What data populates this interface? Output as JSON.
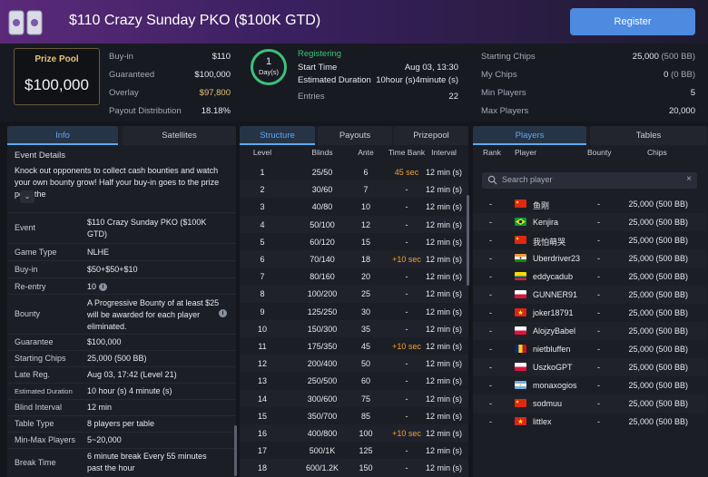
{
  "header": {
    "title": "$110 Crazy Sunday PKO ($100K GTD)",
    "register_label": "Register"
  },
  "summary": {
    "prize_pool_label": "Prize Pool",
    "prize_pool_value": "$100,000",
    "left": [
      {
        "k": "Buy-in",
        "v": "$110"
      },
      {
        "k": "Guaranteed",
        "v": "$100,000"
      },
      {
        "k": "Overlay",
        "v": "$97,800"
      },
      {
        "k": "Payout Distribution",
        "v": "18.18%"
      }
    ],
    "day_num": "1",
    "day_unit": "Day(s)",
    "status": "Registering",
    "mid": [
      {
        "k": "Start Time",
        "v": "Aug 03, 13:30"
      },
      {
        "k": "Estimated Duration",
        "v": "10hour (s)4minute (s)"
      },
      {
        "k": "Entries",
        "v": "22"
      }
    ],
    "right": [
      {
        "k": "Starting Chips",
        "v": "25,000",
        "sub": "(500 BB)"
      },
      {
        "k": "My Chips",
        "v": "0",
        "sub": "(0 BB)"
      },
      {
        "k": "Min Players",
        "v": "5"
      },
      {
        "k": "Max Players",
        "v": "20,000"
      }
    ]
  },
  "info_tabs": [
    "Info",
    "Satellites"
  ],
  "info": {
    "heading": "Event Details",
    "description": "Knock out opponents to collect cash bounties and watch your own bounty grow! Half your buy-in goes to the prize pool, the",
    "rows": [
      {
        "label": "Event",
        "value": "$110 Crazy Sunday PKO ($100K GTD)"
      },
      {
        "label": "Game Type",
        "value": "NLHE"
      },
      {
        "label": "Buy-in",
        "value": "$50+$50+$10"
      },
      {
        "label": "Re-entry",
        "value": "10"
      },
      {
        "label": "Bounty",
        "value": "A Progressive Bounty of at least $25 will be awarded for each player eliminated."
      },
      {
        "label": "Guarantee",
        "value": "$100,000"
      },
      {
        "label": "Starting Chips",
        "value": "25,000 (500 BB)"
      },
      {
        "label": "Late Reg.",
        "value": "Aug 03, 17:42 (Level 21)"
      },
      {
        "label": "Estimated Duration",
        "value": "10 hour (s) 4 minute (s)"
      },
      {
        "label": "Blind Interval",
        "value": "12 min"
      },
      {
        "label": "Table Type",
        "value": "8 players per table"
      },
      {
        "label": "Min-Max Players",
        "value": "5~20,000"
      },
      {
        "label": "Break Time",
        "value": "6 minute break Every 55 minutes past the hour"
      }
    ]
  },
  "structure_tabs": [
    "Structure",
    "Payouts",
    "Prizepool"
  ],
  "structure": {
    "headers": [
      "Level",
      "Blinds",
      "Ante",
      "Time Bank",
      "Interval"
    ],
    "rows": [
      [
        "1",
        "25/50",
        "6",
        "45 sec",
        "12 min (s)"
      ],
      [
        "2",
        "30/60",
        "7",
        "-",
        "12 min (s)"
      ],
      [
        "3",
        "40/80",
        "10",
        "-",
        "12 min (s)"
      ],
      [
        "4",
        "50/100",
        "12",
        "-",
        "12 min (s)"
      ],
      [
        "5",
        "60/120",
        "15",
        "-",
        "12 min (s)"
      ],
      [
        "6",
        "70/140",
        "18",
        "+10 sec",
        "12 min (s)"
      ],
      [
        "7",
        "80/160",
        "20",
        "-",
        "12 min (s)"
      ],
      [
        "8",
        "100/200",
        "25",
        "-",
        "12 min (s)"
      ],
      [
        "9",
        "125/250",
        "30",
        "-",
        "12 min (s)"
      ],
      [
        "10",
        "150/300",
        "35",
        "-",
        "12 min (s)"
      ],
      [
        "11",
        "175/350",
        "45",
        "+10 sec",
        "12 min (s)"
      ],
      [
        "12",
        "200/400",
        "50",
        "-",
        "12 min (s)"
      ],
      [
        "13",
        "250/500",
        "60",
        "-",
        "12 min (s)"
      ],
      [
        "14",
        "300/600",
        "75",
        "-",
        "12 min (s)"
      ],
      [
        "15",
        "350/700",
        "85",
        "-",
        "12 min (s)"
      ],
      [
        "16",
        "400/800",
        "100",
        "+10 sec",
        "12 min (s)"
      ],
      [
        "17",
        "500/1K",
        "125",
        "-",
        "12 min (s)"
      ],
      [
        "18",
        "600/1.2K",
        "150",
        "-",
        "12 min (s)"
      ]
    ]
  },
  "players_tabs": [
    "Players",
    "Tables"
  ],
  "players": {
    "headers": [
      "Rank",
      "Player",
      "Bounty",
      "Chips"
    ],
    "search_placeholder": "Search player",
    "rows": [
      {
        "rank": "-",
        "flag": "cn",
        "name": "鱼刚",
        "bounty": "-",
        "chips": "25,000 (500 BB)"
      },
      {
        "rank": "-",
        "flag": "br",
        "name": "Kenjira",
        "bounty": "-",
        "chips": "25,000 (500 BB)"
      },
      {
        "rank": "-",
        "flag": "cn",
        "name": "我怕萌哭",
        "bounty": "-",
        "chips": "25,000 (500 BB)"
      },
      {
        "rank": "-",
        "flag": "in",
        "name": "Uberdriver23",
        "bounty": "-",
        "chips": "25,000 (500 BB)"
      },
      {
        "rank": "-",
        "flag": "ec",
        "name": "eddycadub",
        "bounty": "-",
        "chips": "25,000 (500 BB)"
      },
      {
        "rank": "-",
        "flag": "pl",
        "name": "GUNNER91",
        "bounty": "-",
        "chips": "25,000 (500 BB)"
      },
      {
        "rank": "-",
        "flag": "vn",
        "name": "joker18791",
        "bounty": "-",
        "chips": "25,000 (500 BB)"
      },
      {
        "rank": "-",
        "flag": "pl",
        "name": "AlojzyBabel",
        "bounty": "-",
        "chips": "25,000 (500 BB)"
      },
      {
        "rank": "-",
        "flag": "ro",
        "name": "nietbluffen",
        "bounty": "-",
        "chips": "25,000 (500 BB)"
      },
      {
        "rank": "-",
        "flag": "pl",
        "name": "UszkoGPT",
        "bounty": "-",
        "chips": "25,000 (500 BB)"
      },
      {
        "rank": "-",
        "flag": "ar",
        "name": "monaxogios",
        "bounty": "-",
        "chips": "25,000 (500 BB)"
      },
      {
        "rank": "-",
        "flag": "cn",
        "name": "sodmuu",
        "bounty": "-",
        "chips": "25,000 (500 BB)"
      },
      {
        "rank": "-",
        "flag": "vn",
        "name": "littlex",
        "bounty": "-",
        "chips": "25,000 (500 BB)"
      }
    ]
  },
  "colors": {
    "accent_blue": "#5fa8f0",
    "register_button": "#4d8ae0",
    "registering_green": "#3cc17a",
    "gold": "#e6c37a",
    "time_bank_orange": "#f0a030"
  }
}
